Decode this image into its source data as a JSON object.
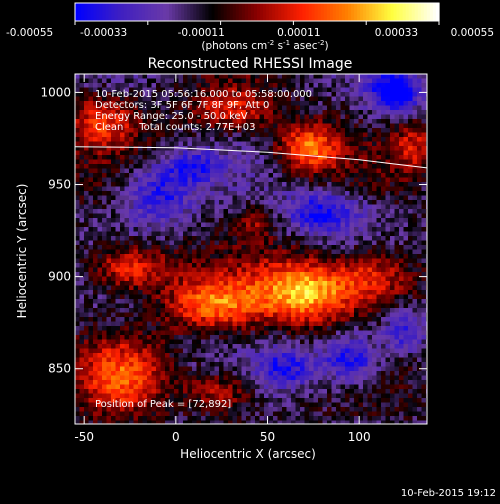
{
  "colorbar": {
    "tick_labels": [
      "-0.00055",
      "-0.00033",
      "-0.00011",
      "0.00011",
      "0.00033",
      "0.00055"
    ],
    "tick_values": [
      -0.00055,
      -0.00033,
      -0.00011,
      0.00011,
      0.00033,
      0.00055
    ],
    "range": [
      -0.00055,
      0.00055
    ],
    "units_line1": "(photons cm",
    "units_exp1": "-2",
    "units_mid": " s",
    "units_exp2": "-1",
    "units_mid2": " asec",
    "units_exp3": "-2",
    "units_end": ")",
    "colors": [
      "#0000ff",
      "#4020c0",
      "#6a3aa8",
      "#000000",
      "#8a0000",
      "#ff2000",
      "#ff8000",
      "#ffff40",
      "#ffffff"
    ]
  },
  "chart_data": {
    "type": "heatmap",
    "title": "Reconstructed RHESSI Image",
    "xlabel": "Heliocentric X (arcsec)",
    "ylabel": "Heliocentric Y (arcsec)",
    "xlim": [
      -55,
      137
    ],
    "ylim": [
      820,
      1010
    ],
    "xticks": [
      -50,
      0,
      50,
      100
    ],
    "yticks": [
      850,
      900,
      950,
      1000
    ],
    "annotations": [
      "10-Feb-2015 05:56:16.000 to 05:58:00.000",
      "Detectors: 3F 5F 6F 7F 8F 9F, Att 0",
      "Energy Range: 25.0 - 50.0 keV",
      "Clean     Total counts: 2.77E+03"
    ],
    "peak_label": "Position of Peak = [72,892]",
    "peak": [
      72,
      892
    ],
    "limb": {
      "x": [
        -55,
        0,
        50,
        100,
        137
      ],
      "y": [
        970.5,
        970,
        967.5,
        963.5,
        959
      ]
    },
    "hotspots": [
      {
        "x": 72,
        "y": 892,
        "intensity": 0.00055,
        "sx": 20,
        "sy": 12
      },
      {
        "x": 20,
        "y": 885,
        "intensity": 0.0004,
        "sx": 18,
        "sy": 10
      },
      {
        "x": -25,
        "y": 905,
        "intensity": 0.00038,
        "sx": 16,
        "sy": 9
      },
      {
        "x": 110,
        "y": 900,
        "intensity": 0.00032,
        "sx": 14,
        "sy": 10
      },
      {
        "x": 72,
        "y": 970,
        "intensity": 0.00042,
        "sx": 12,
        "sy": 9
      },
      {
        "x": -40,
        "y": 985,
        "intensity": 0.0003,
        "sx": 14,
        "sy": 10
      },
      {
        "x": 30,
        "y": 990,
        "intensity": 0.00028,
        "sx": 16,
        "sy": 8
      },
      {
        "x": -30,
        "y": 845,
        "intensity": 0.00032,
        "sx": 16,
        "sy": 14
      },
      {
        "x": 25,
        "y": 838,
        "intensity": 0.00026,
        "sx": 14,
        "sy": 8
      },
      {
        "x": 130,
        "y": 970,
        "intensity": 0.00024,
        "sx": 8,
        "sy": 10
      },
      {
        "x": 45,
        "y": 930,
        "intensity": 0.00018,
        "sx": 8,
        "sy": 6
      }
    ],
    "coldspots": [
      {
        "x": 120,
        "y": 1000,
        "intensity": -0.00045,
        "sx": 10,
        "sy": 8
      },
      {
        "x": 95,
        "y": 855,
        "intensity": -0.0004,
        "sx": 12,
        "sy": 10
      },
      {
        "x": -10,
        "y": 945,
        "intensity": -0.00032,
        "sx": 14,
        "sy": 12
      },
      {
        "x": 80,
        "y": 935,
        "intensity": -0.00035,
        "sx": 16,
        "sy": 8
      },
      {
        "x": 60,
        "y": 850,
        "intensity": -0.0003,
        "sx": 10,
        "sy": 8
      },
      {
        "x": 125,
        "y": 870,
        "intensity": -0.00028,
        "sx": 8,
        "sy": 8
      },
      {
        "x": 10,
        "y": 960,
        "intensity": -0.00025,
        "sx": 10,
        "sy": 6
      }
    ]
  },
  "footer": {
    "timestamp": "10-Feb-2015 19:12"
  }
}
